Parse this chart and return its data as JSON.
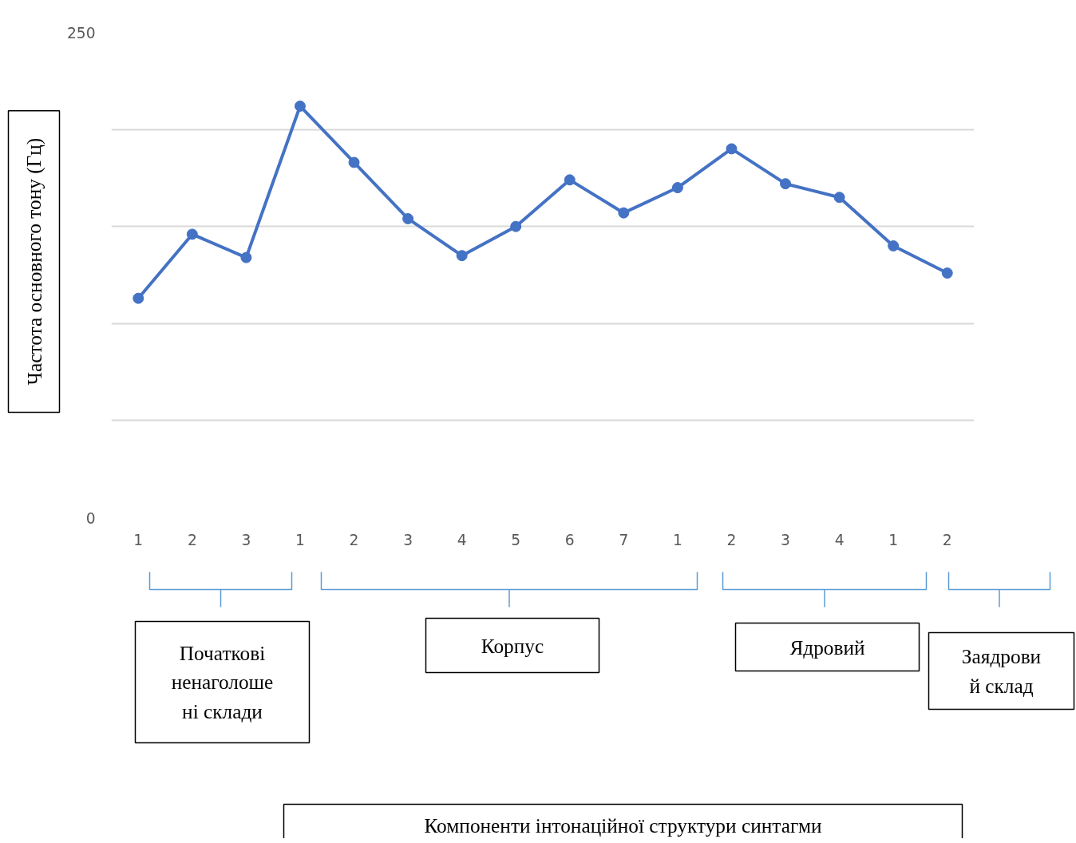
{
  "chart_data": {
    "type": "line",
    "ylabel": "Частота основного тону (Гц)",
    "categories": [
      "1",
      "2",
      "3",
      "1",
      "2",
      "3",
      "4",
      "5",
      "6",
      "7",
      "1",
      "2",
      "3",
      "4",
      "1",
      "2"
    ],
    "series": [
      {
        "color": "#4472c4",
        "values": [
          113,
          146,
          134,
          212,
          183,
          154,
          135,
          150,
          174,
          157,
          170,
          190,
          172,
          165,
          140,
          126
        ]
      }
    ],
    "ylim": [
      0,
      250
    ],
    "yticks": [
      0,
      {
        "value": 50,
        "label": null
      },
      {
        "value": 100,
        "label": null
      },
      {
        "value": 150,
        "label": null
      },
      {
        "value": 200,
        "label": null
      },
      250
    ],
    "grid": "y",
    "marker": "circle",
    "line_style": "solid",
    "annotations": [
      "Початкові\nненаголоше\nні склади",
      "Корпус",
      "Ядровий",
      "Заядрови\nй склад",
      "Компоненти інтонаційної структури синтагми"
    ]
  }
}
